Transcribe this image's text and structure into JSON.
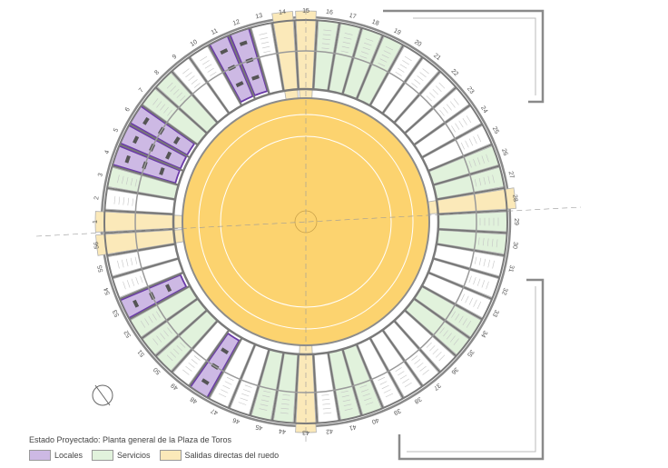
{
  "plan": {
    "caption": "Estado Proyectado: Planta general de la Plaza de Toros",
    "unit_numbers": [
      "1",
      "2",
      "3",
      "4",
      "5",
      "6",
      "7",
      "8",
      "9",
      "10",
      "11",
      "12",
      "13",
      "14",
      "15",
      "16",
      "17",
      "18",
      "19",
      "20",
      "21",
      "22",
      "23",
      "24",
      "25",
      "26",
      "27",
      "28",
      "29",
      "30",
      "31",
      "32",
      "33",
      "34",
      "35",
      "36",
      "37",
      "38",
      "39",
      "40",
      "41",
      "42",
      "43",
      "44",
      "45",
      "46",
      "47",
      "48",
      "49",
      "50",
      "51",
      "52",
      "53",
      "54",
      "55",
      "56"
    ],
    "locales_units": [
      4,
      5,
      6,
      11,
      12,
      48,
      53
    ],
    "servicios_units": [
      3,
      7,
      8,
      16,
      17,
      18,
      19,
      26,
      27,
      29,
      30,
      34,
      35,
      40,
      41,
      44,
      45,
      50,
      51,
      52
    ],
    "salidas_units": [
      1,
      14,
      15,
      28,
      43,
      56
    ]
  },
  "legend": {
    "items": [
      {
        "label": "Locales",
        "color": "#cdb9e4"
      },
      {
        "label": "Servicios",
        "color": "#e1f2dc"
      },
      {
        "label": "Salidas directas del ruedo",
        "color": "#fbe9b9"
      }
    ]
  },
  "colors": {
    "ruedo": "#fcd36f",
    "locales": "#cdb9e4",
    "locales_outline": "#6a3aa8",
    "servicios": "#e1f2dc",
    "salidas": "#fbe9b9",
    "walls": "#8a8a8a"
  }
}
